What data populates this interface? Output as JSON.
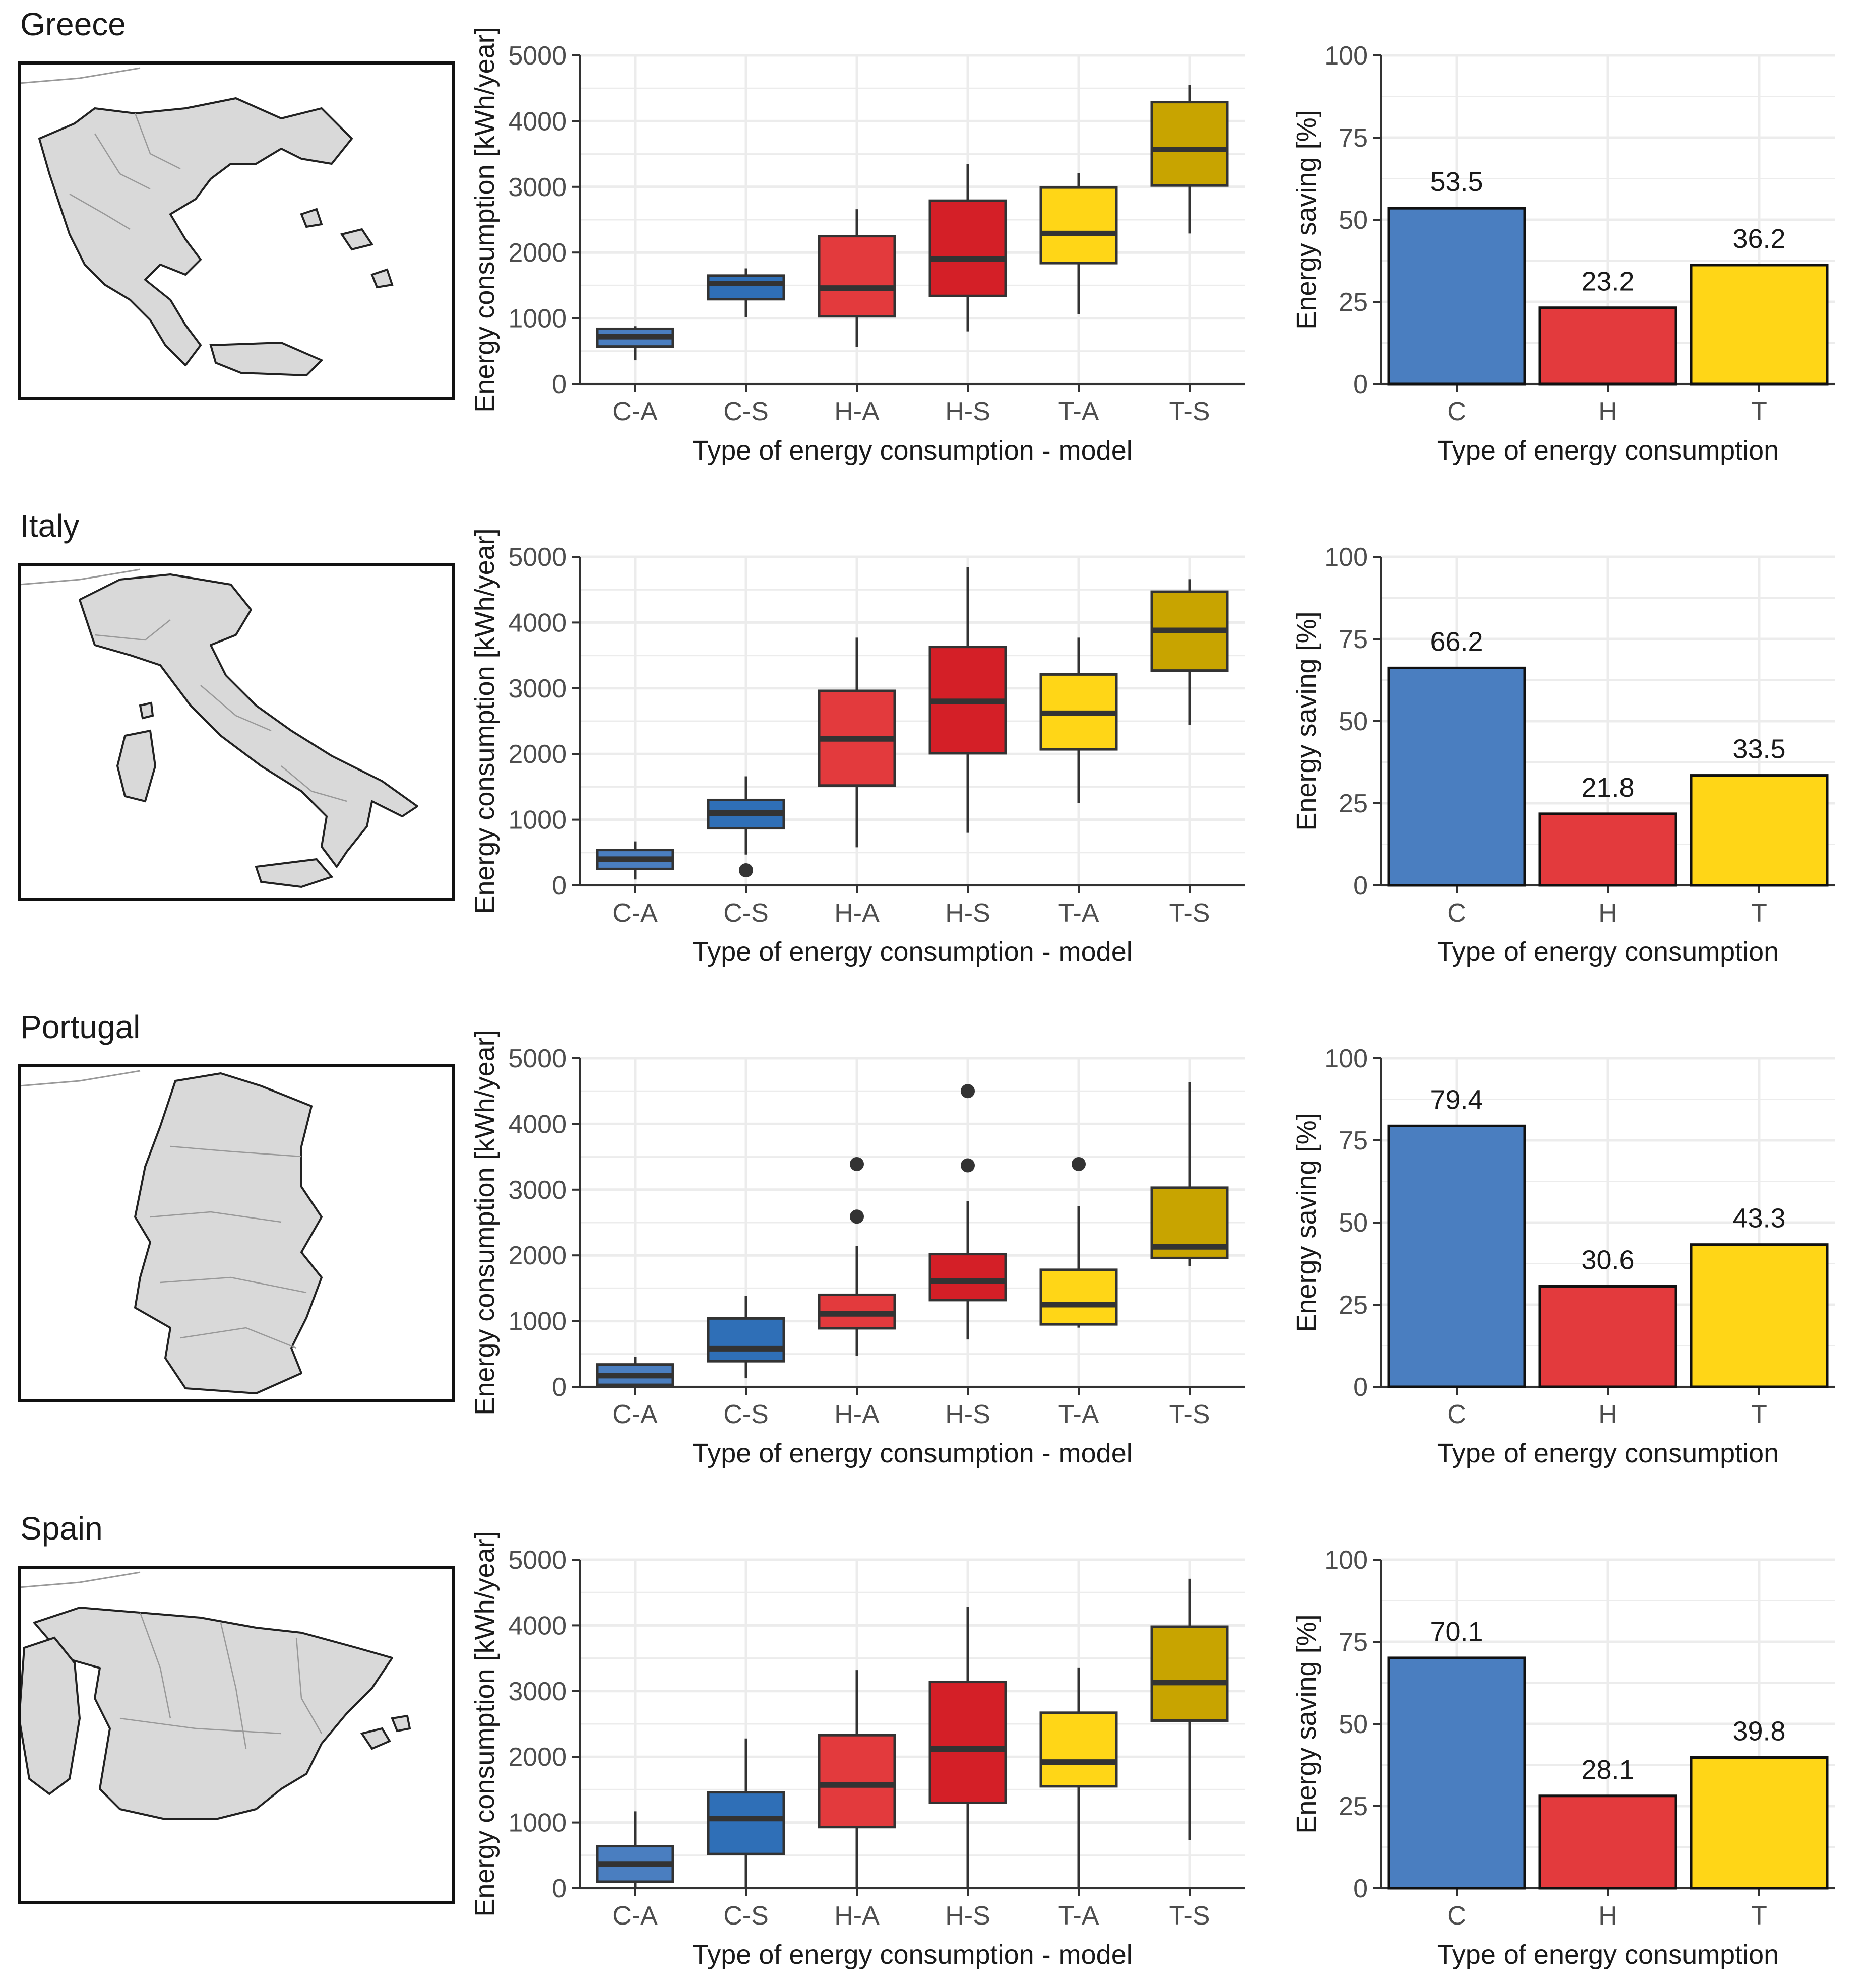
{
  "figure": {
    "rows": [
      {
        "country": "Greece",
        "map_name": "greece-map",
        "box_chart_index": 0,
        "bar_chart_index": 1
      },
      {
        "country": "Italy",
        "map_name": "italy-map",
        "box_chart_index": 2,
        "bar_chart_index": 3
      },
      {
        "country": "Portugal",
        "map_name": "portugal-map",
        "box_chart_index": 4,
        "bar_chart_index": 5
      },
      {
        "country": "Spain",
        "map_name": "spain-map",
        "box_chart_index": 6,
        "bar_chart_index": 7
      }
    ]
  },
  "colors": {
    "C": "#4A7EC0",
    "C_S": "#2F6FB7",
    "H": "#E33A3D",
    "H_S": "#D41F27",
    "T": "#FFD617",
    "T_S": "#C8A400",
    "grid": "#ECECEC",
    "axis": "#333333",
    "text": "#4D4D4D",
    "map_fill": "#D9D9D9",
    "map_line": "#999999"
  },
  "chart_data": [
    {
      "type": "box",
      "country": "Greece",
      "title": "",
      "xlabel": "Type of energy consumption - model",
      "ylabel": "Energy consumption [kWh/year]",
      "ylim": [
        0,
        5000
      ],
      "yticks": [
        "0",
        "1000",
        "2000",
        "3000",
        "4000",
        "5000"
      ],
      "categories": [
        "C-A",
        "C-S",
        "H-A",
        "H-S",
        "T-A",
        "T-S"
      ],
      "fill_keys": [
        "C",
        "C_S",
        "H",
        "H_S",
        "T",
        "T_S"
      ],
      "boxes": [
        {
          "min": 360,
          "q1": 570,
          "median": 720,
          "q3": 840,
          "max": 880,
          "outliers": []
        },
        {
          "min": 1020,
          "q1": 1290,
          "median": 1530,
          "q3": 1650,
          "max": 1760,
          "outliers": []
        },
        {
          "min": 560,
          "q1": 1030,
          "median": 1460,
          "q3": 2250,
          "max": 2660,
          "outliers": []
        },
        {
          "min": 800,
          "q1": 1340,
          "median": 1900,
          "q3": 2790,
          "max": 3350,
          "outliers": []
        },
        {
          "min": 1060,
          "q1": 1840,
          "median": 2290,
          "q3": 2990,
          "max": 3210,
          "outliers": []
        },
        {
          "min": 2290,
          "q1": 3020,
          "median": 3570,
          "q3": 4290,
          "max": 4550,
          "outliers": []
        }
      ]
    },
    {
      "type": "bar",
      "country": "Greece",
      "title": "",
      "xlabel": "Type of energy consumption",
      "ylabel": "Energy saving [%]",
      "ylim": [
        0,
        100
      ],
      "yticks": [
        "0",
        "25",
        "50",
        "75",
        "100"
      ],
      "categories": [
        "C",
        "H",
        "T"
      ],
      "fill_keys": [
        "C",
        "H",
        "T"
      ],
      "values": [
        53.5,
        23.2,
        36.2
      ],
      "value_labels": [
        "53.5",
        "23.2",
        "36.2"
      ]
    },
    {
      "type": "box",
      "country": "Italy",
      "title": "",
      "xlabel": "Type of energy consumption - model",
      "ylabel": "Energy consumption [kWh/year]",
      "ylim": [
        0,
        5000
      ],
      "yticks": [
        "0",
        "1000",
        "2000",
        "3000",
        "4000",
        "5000"
      ],
      "categories": [
        "C-A",
        "C-S",
        "H-A",
        "H-S",
        "T-A",
        "T-S"
      ],
      "fill_keys": [
        "C",
        "C_S",
        "H",
        "H_S",
        "T",
        "T_S"
      ],
      "boxes": [
        {
          "min": 90,
          "q1": 250,
          "median": 400,
          "q3": 540,
          "max": 670,
          "outliers": []
        },
        {
          "min": 470,
          "q1": 870,
          "median": 1100,
          "q3": 1300,
          "max": 1660,
          "outliers": [
            230
          ]
        },
        {
          "min": 580,
          "q1": 1520,
          "median": 2230,
          "q3": 2960,
          "max": 3770,
          "outliers": []
        },
        {
          "min": 800,
          "q1": 2010,
          "median": 2800,
          "q3": 3630,
          "max": 4840,
          "outliers": []
        },
        {
          "min": 1250,
          "q1": 2070,
          "median": 2620,
          "q3": 3210,
          "max": 3770,
          "outliers": []
        },
        {
          "min": 2440,
          "q1": 3270,
          "median": 3880,
          "q3": 4470,
          "max": 4660,
          "outliers": []
        }
      ]
    },
    {
      "type": "bar",
      "country": "Italy",
      "title": "",
      "xlabel": "Type of energy consumption",
      "ylabel": "Energy saving [%]",
      "ylim": [
        0,
        100
      ],
      "yticks": [
        "0",
        "25",
        "50",
        "75",
        "100"
      ],
      "categories": [
        "C",
        "H",
        "T"
      ],
      "fill_keys": [
        "C",
        "H",
        "T"
      ],
      "values": [
        66.2,
        21.8,
        33.5
      ],
      "value_labels": [
        "66.2",
        "21.8",
        "33.5"
      ]
    },
    {
      "type": "box",
      "country": "Portugal",
      "title": "",
      "xlabel": "Type of energy consumption - model",
      "ylabel": "Energy consumption [kWh/year]",
      "ylim": [
        0,
        5000
      ],
      "yticks": [
        "0",
        "1000",
        "2000",
        "3000",
        "4000",
        "5000"
      ],
      "categories": [
        "C-A",
        "C-S",
        "H-A",
        "H-S",
        "T-A",
        "T-S"
      ],
      "fill_keys": [
        "C",
        "C_S",
        "H",
        "H_S",
        "T",
        "T_S"
      ],
      "boxes": [
        {
          "min": 0,
          "q1": 30,
          "median": 170,
          "q3": 340,
          "max": 460,
          "outliers": []
        },
        {
          "min": 130,
          "q1": 390,
          "median": 580,
          "q3": 1040,
          "max": 1380,
          "outliers": []
        },
        {
          "min": 470,
          "q1": 890,
          "median": 1110,
          "q3": 1400,
          "max": 2140,
          "outliers": [
            2590,
            3390
          ]
        },
        {
          "min": 720,
          "q1": 1320,
          "median": 1610,
          "q3": 2020,
          "max": 2830,
          "outliers": [
            3370,
            4500
          ]
        },
        {
          "min": 900,
          "q1": 950,
          "median": 1250,
          "q3": 1780,
          "max": 2750,
          "outliers": [
            3390
          ]
        },
        {
          "min": 1840,
          "q1": 1960,
          "median": 2130,
          "q3": 3030,
          "max": 4640,
          "outliers": []
        }
      ]
    },
    {
      "type": "bar",
      "country": "Portugal",
      "title": "",
      "xlabel": "Type of energy consumption",
      "ylabel": "Energy saving [%]",
      "ylim": [
        0,
        100
      ],
      "yticks": [
        "0",
        "25",
        "50",
        "75",
        "100"
      ],
      "categories": [
        "C",
        "H",
        "T"
      ],
      "fill_keys": [
        "C",
        "H",
        "T"
      ],
      "values": [
        79.4,
        30.6,
        43.3
      ],
      "value_labels": [
        "79.4",
        "30.6",
        "43.3"
      ]
    },
    {
      "type": "box",
      "country": "Spain",
      "title": "",
      "xlabel": "Type of energy consumption - model",
      "ylabel": "Energy consumption [kWh/year]",
      "ylim": [
        0,
        5000
      ],
      "yticks": [
        "0",
        "1000",
        "2000",
        "3000",
        "4000",
        "5000"
      ],
      "categories": [
        "C-A",
        "C-S",
        "H-A",
        "H-S",
        "T-A",
        "T-S"
      ],
      "fill_keys": [
        "C",
        "C_S",
        "H",
        "H_S",
        "T",
        "T_S"
      ],
      "boxes": [
        {
          "min": 0,
          "q1": 100,
          "median": 370,
          "q3": 640,
          "max": 1170,
          "outliers": []
        },
        {
          "min": 0,
          "q1": 520,
          "median": 1060,
          "q3": 1460,
          "max": 2280,
          "outliers": []
        },
        {
          "min": 0,
          "q1": 930,
          "median": 1570,
          "q3": 2330,
          "max": 3320,
          "outliers": []
        },
        {
          "min": 0,
          "q1": 1300,
          "median": 2120,
          "q3": 3140,
          "max": 4280,
          "outliers": []
        },
        {
          "min": 0,
          "q1": 1550,
          "median": 1920,
          "q3": 2670,
          "max": 3360,
          "outliers": []
        },
        {
          "min": 730,
          "q1": 2550,
          "median": 3130,
          "q3": 3980,
          "max": 4710,
          "outliers": []
        }
      ]
    },
    {
      "type": "bar",
      "country": "Spain",
      "title": "",
      "xlabel": "Type of energy consumption",
      "ylabel": "Energy saving [%]",
      "ylim": [
        0,
        100
      ],
      "yticks": [
        "0",
        "25",
        "50",
        "75",
        "100"
      ],
      "categories": [
        "C",
        "H",
        "T"
      ],
      "fill_keys": [
        "C",
        "H",
        "T"
      ],
      "values": [
        70.1,
        28.1,
        39.8
      ],
      "value_labels": [
        "70.1",
        "28.1",
        "39.8"
      ]
    }
  ]
}
